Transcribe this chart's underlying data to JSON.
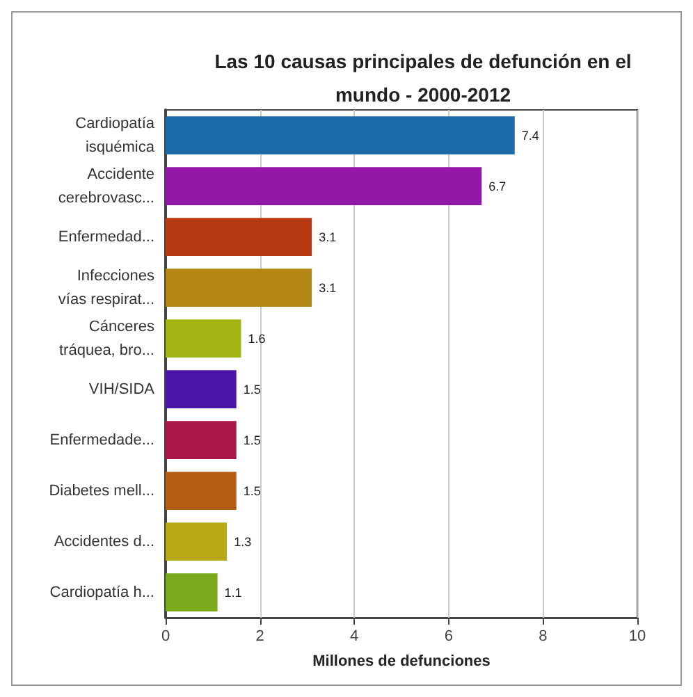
{
  "chart_data": {
    "type": "bar",
    "orientation": "horizontal",
    "title": "Las 10 causas principales de defunción en el\nmundo - 2000-2012",
    "xlabel": "Millones de defunciones",
    "categories": [
      "Cardiopatía\nisquémica",
      "Accidente\ncerebrovasc...",
      "Enfermedad...",
      "Infecciones\nvías respirat...",
      "Cánceres\ntráquea, bro...",
      "VIH/SIDA",
      "Enfermedade...",
      "Diabetes mell...",
      "Accidentes d...",
      "Cardiopatía h..."
    ],
    "values": [
      7.4,
      6.7,
      3.1,
      3.1,
      1.6,
      1.5,
      1.5,
      1.5,
      1.3,
      1.1
    ],
    "colors": [
      "#1c6aa8",
      "#9418a8",
      "#b83a12",
      "#b38512",
      "#a3b513",
      "#4c17a8",
      "#ab1848",
      "#b35e12",
      "#b8aa14",
      "#7aaa1c"
    ],
    "xlim": [
      0,
      10
    ],
    "xticks": [
      0,
      2,
      4,
      6,
      8,
      10
    ],
    "grid": "x",
    "data_labels": true
  }
}
